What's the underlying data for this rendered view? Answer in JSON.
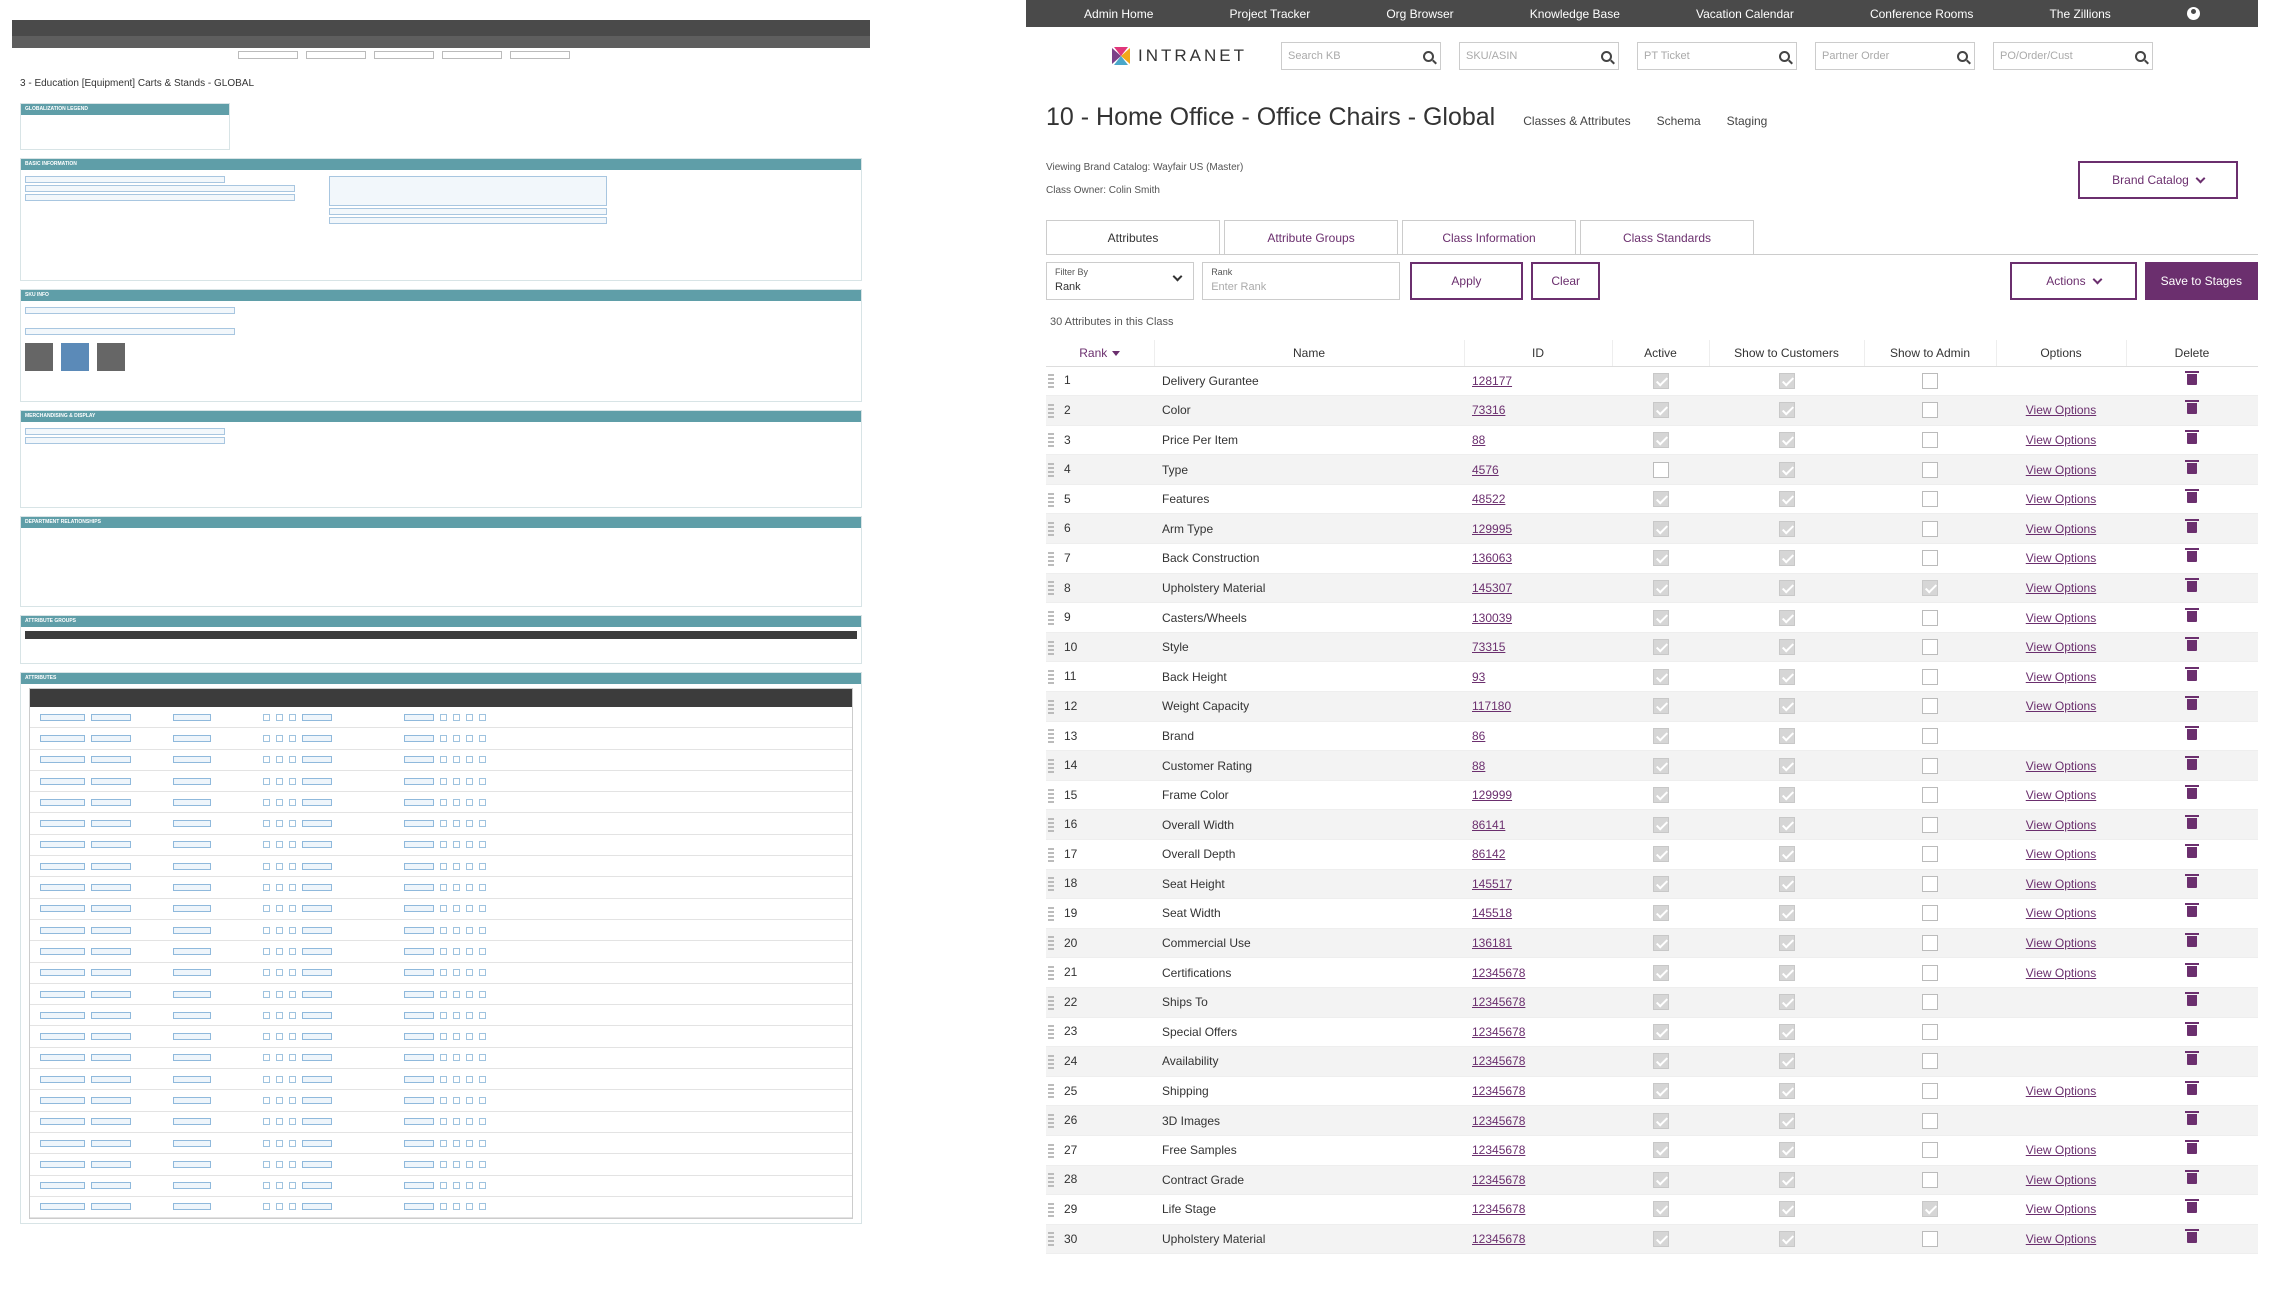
{
  "left_panel": {
    "page_title": "3 - Education [Equipment] Carts & Stands - GLOBAL",
    "sections": [
      "Globalization Legend",
      "Basic Information",
      "SKU Info",
      "Merchandising & Display",
      "Department Relationships",
      "Attribute Groups",
      "Attributes"
    ]
  },
  "nav": {
    "items": [
      "Admin Home",
      "Project Tracker",
      "Org Browser",
      "Knowledge Base",
      "Vacation Calendar",
      "Conference Rooms",
      "The Zillions"
    ],
    "avatar_icon": "user-icon"
  },
  "brand": {
    "logo_text": "INTRANET",
    "searches": [
      "Search KB",
      "SKU/ASIN",
      "PT Ticket",
      "Partner Order",
      "PO/Order/Cust"
    ]
  },
  "page": {
    "title": "10 - Home Office - Office Chairs - Global",
    "subtabs": [
      "Classes & Attributes",
      "Schema",
      "Staging"
    ],
    "viewing_label": "Viewing Brand Catalog:",
    "viewing_value": "Wayfair US (Master)",
    "owner_label": "Class Owner:",
    "owner_value": "Colin Smith",
    "brand_catalog_button": "Brand Catalog"
  },
  "tabs": [
    "Attributes",
    "Attribute Groups",
    "Class Information",
    "Class Standards"
  ],
  "filters": {
    "filter_by_label": "Filter By",
    "filter_by_value": "Rank",
    "rank_label": "Rank",
    "rank_placeholder": "Enter Rank",
    "apply": "Apply",
    "clear": "Clear",
    "actions": "Actions",
    "save": "Save to Stages"
  },
  "count_text": "30 Attributes in this Class",
  "table": {
    "headers": [
      "Rank",
      "Name",
      "ID",
      "Active",
      "Show to Customers",
      "Show to Admin",
      "Options",
      "Delete"
    ],
    "view_options_label": "View Options",
    "rows": [
      {
        "rank": "1",
        "name": "Delivery Gurantee",
        "id": "128177",
        "active": true,
        "cust": true,
        "admin": false,
        "opts": false
      },
      {
        "rank": "2",
        "name": "Color",
        "id": "73316",
        "active": true,
        "cust": true,
        "admin": false,
        "opts": true
      },
      {
        "rank": "3",
        "name": "Price Per Item",
        "id": "88",
        "active": true,
        "cust": true,
        "admin": false,
        "opts": true
      },
      {
        "rank": "4",
        "name": "Type",
        "id": "4576",
        "active": false,
        "cust": true,
        "admin": false,
        "opts": true
      },
      {
        "rank": "5",
        "name": "Features",
        "id": "48522",
        "active": true,
        "cust": true,
        "admin": false,
        "opts": true
      },
      {
        "rank": "6",
        "name": "Arm Type",
        "id": "129995",
        "active": true,
        "cust": true,
        "admin": false,
        "opts": true
      },
      {
        "rank": "7",
        "name": "Back Construction",
        "id": "136063",
        "active": true,
        "cust": true,
        "admin": false,
        "opts": true
      },
      {
        "rank": "8",
        "name": "Upholstery Material",
        "id": "145307",
        "active": true,
        "cust": true,
        "admin": true,
        "opts": true
      },
      {
        "rank": "9",
        "name": "Casters/Wheels",
        "id": "130039",
        "active": true,
        "cust": true,
        "admin": false,
        "opts": true
      },
      {
        "rank": "10",
        "name": "Style",
        "id": "73315",
        "active": true,
        "cust": true,
        "admin": false,
        "opts": true
      },
      {
        "rank": "11",
        "name": "Back Height",
        "id": "93",
        "active": true,
        "cust": true,
        "admin": false,
        "opts": true
      },
      {
        "rank": "12",
        "name": "Weight Capacity",
        "id": "117180",
        "active": true,
        "cust": true,
        "admin": false,
        "opts": true
      },
      {
        "rank": "13",
        "name": "Brand",
        "id": "86",
        "active": true,
        "cust": true,
        "admin": false,
        "opts": false
      },
      {
        "rank": "14",
        "name": "Customer Rating",
        "id": "88",
        "active": true,
        "cust": true,
        "admin": false,
        "opts": true
      },
      {
        "rank": "15",
        "name": "Frame Color",
        "id": "129999",
        "active": true,
        "cust": true,
        "admin": false,
        "opts": true
      },
      {
        "rank": "16",
        "name": "Overall Width",
        "id": "86141",
        "active": true,
        "cust": true,
        "admin": false,
        "opts": true
      },
      {
        "rank": "17",
        "name": "Overall Depth",
        "id": "86142",
        "active": true,
        "cust": true,
        "admin": false,
        "opts": true
      },
      {
        "rank": "18",
        "name": "Seat Height",
        "id": "145517",
        "active": true,
        "cust": true,
        "admin": false,
        "opts": true
      },
      {
        "rank": "19",
        "name": "Seat Width",
        "id": "145518",
        "active": true,
        "cust": true,
        "admin": false,
        "opts": true
      },
      {
        "rank": "20",
        "name": "Commercial Use",
        "id": "136181",
        "active": true,
        "cust": true,
        "admin": false,
        "opts": true
      },
      {
        "rank": "21",
        "name": "Certifications",
        "id": "12345678",
        "active": true,
        "cust": true,
        "admin": false,
        "opts": true
      },
      {
        "rank": "22",
        "name": "Ships To",
        "id": "12345678",
        "active": true,
        "cust": true,
        "admin": false,
        "opts": false
      },
      {
        "rank": "23",
        "name": "Special Offers",
        "id": "12345678",
        "active": true,
        "cust": true,
        "admin": false,
        "opts": false
      },
      {
        "rank": "24",
        "name": "Availability",
        "id": "12345678",
        "active": true,
        "cust": true,
        "admin": false,
        "opts": false
      },
      {
        "rank": "25",
        "name": "Shipping",
        "id": "12345678",
        "active": true,
        "cust": true,
        "admin": false,
        "opts": true
      },
      {
        "rank": "26",
        "name": "3D Images",
        "id": "12345678",
        "active": true,
        "cust": true,
        "admin": false,
        "opts": false
      },
      {
        "rank": "27",
        "name": "Free Samples",
        "id": "12345678",
        "active": true,
        "cust": true,
        "admin": false,
        "opts": true
      },
      {
        "rank": "28",
        "name": "Contract Grade",
        "id": "12345678",
        "active": true,
        "cust": true,
        "admin": false,
        "opts": true
      },
      {
        "rank": "29",
        "name": "Life Stage",
        "id": "12345678",
        "active": true,
        "cust": true,
        "admin": true,
        "opts": true
      },
      {
        "rank": "30",
        "name": "Upholstery Material",
        "id": "12345678",
        "active": true,
        "cust": true,
        "admin": false,
        "opts": true
      }
    ]
  },
  "colors": {
    "accent": "#6b2f6e",
    "nav_bg": "#4a4a4a",
    "legacy_section": "#5f9ea8"
  }
}
